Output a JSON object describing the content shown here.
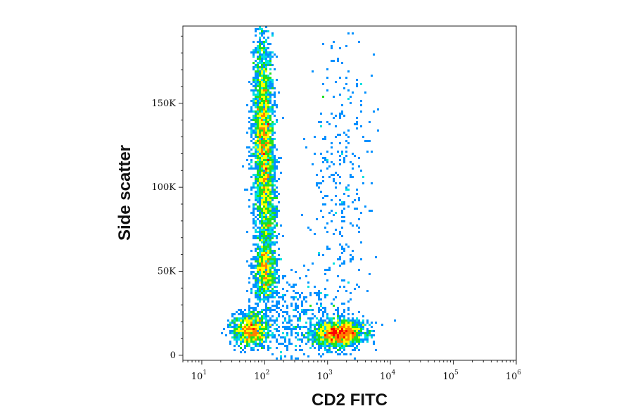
{
  "chart_data": {
    "type": "scatter",
    "style": "flow cytometry density dot plot (pseudocolor)",
    "xlabel": "CD2 FITC",
    "ylabel": "Side scatter",
    "x_scale": "log",
    "xlim": [
      5,
      1000000
    ],
    "ylim": [
      -3000,
      196000
    ],
    "x_ticks": [
      {
        "value": 10,
        "base": "10",
        "exp": "1"
      },
      {
        "value": 100,
        "base": "10",
        "exp": "2"
      },
      {
        "value": 1000,
        "base": "10",
        "exp": "3"
      },
      {
        "value": 10000,
        "base": "10",
        "exp": "4"
      },
      {
        "value": 100000,
        "base": "10",
        "exp": "5"
      },
      {
        "value": 1000000,
        "base": "10",
        "exp": "6"
      }
    ],
    "y_ticks": [
      {
        "value": 0,
        "label": "0"
      },
      {
        "value": 50000,
        "label": "50K"
      },
      {
        "value": 100000,
        "label": "100K"
      },
      {
        "value": 150000,
        "label": "150K"
      }
    ],
    "grid": false,
    "legend": "none",
    "colormap": [
      "#1a1aff",
      "#0090ff",
      "#00e0e0",
      "#20e020",
      "#ffff00",
      "#ff8000",
      "#ff0000"
    ],
    "populations": [
      {
        "x_log_center": 1.98,
        "x_log_sd": 0.085,
        "y_center": 130000,
        "y_sd": 30000,
        "points": 2600,
        "tilt": -0.1
      },
      {
        "x_log_center": 2.0,
        "x_log_sd": 0.09,
        "y_center": 50000,
        "y_sd": 9000,
        "points": 800,
        "tilt": 0
      },
      {
        "x_log_center": 1.78,
        "x_log_sd": 0.14,
        "y_center": 15000,
        "y_sd": 5000,
        "points": 1000,
        "tilt": 0
      },
      {
        "x_log_center": 3.18,
        "x_log_sd": 0.2,
        "y_center": 13000,
        "y_sd": 4000,
        "points": 1600,
        "tilt": 0.1
      },
      {
        "x_log_center": 2.5,
        "x_log_sd": 0.35,
        "y_center": 20000,
        "y_sd": 12000,
        "points": 400,
        "tilt": 0
      },
      {
        "x_log_center": 3.2,
        "x_log_sd": 0.25,
        "y_center": 100000,
        "y_sd": 55000,
        "points": 350,
        "tilt": 0
      },
      {
        "x_log_center": 2.05,
        "x_log_sd": 0.08,
        "y_center": 85000,
        "y_sd": 15000,
        "points": 500,
        "tilt": 0
      }
    ]
  }
}
